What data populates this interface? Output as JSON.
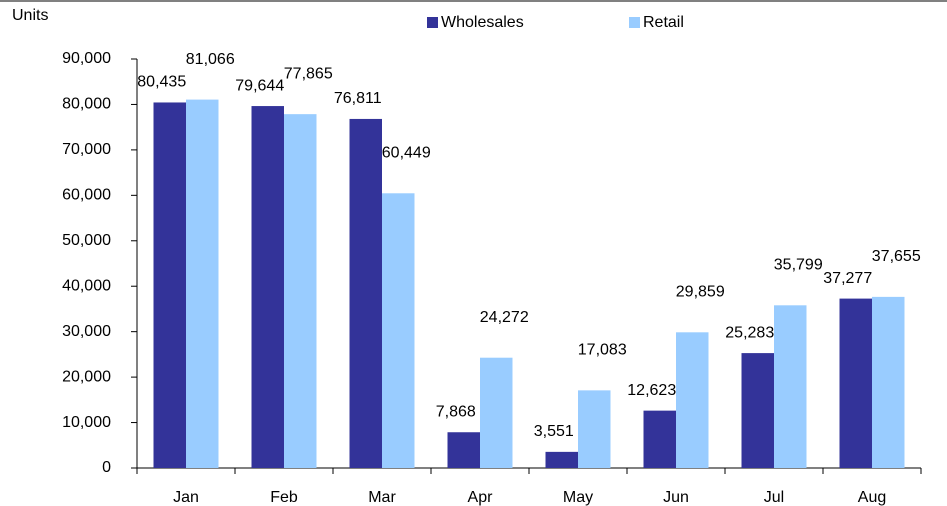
{
  "chart_data": {
    "type": "bar",
    "y_label": "Units",
    "categories": [
      "Jan",
      "Feb",
      "Mar",
      "Apr",
      "May",
      "Jun",
      "Jul",
      "Aug"
    ],
    "series": [
      {
        "name": "Wholesales",
        "color": "#333399",
        "values": [
          80435,
          79644,
          76811,
          7868,
          3551,
          12623,
          25283,
          37277
        ],
        "value_labels": [
          "80,435",
          "79,644",
          "76,811",
          "7,868",
          "3,551",
          "12,623",
          "25,283",
          "37,277"
        ]
      },
      {
        "name": "Retail",
        "color": "#99ccff",
        "values": [
          81066,
          77865,
          60449,
          24272,
          17083,
          29859,
          35799,
          37655
        ],
        "value_labels": [
          "81,066",
          "77,865",
          "60,449",
          "24,272",
          "17,083",
          "29,859",
          "35,799",
          "37,655"
        ]
      }
    ],
    "ylim": [
      0,
      90000
    ],
    "yticks": [
      0,
      {
        "value": 10000,
        "label": "10,000"
      },
      {
        "value": 20000,
        "label": "20,000"
      },
      {
        "value": 30000,
        "label": "30,000"
      },
      {
        "value": 40000,
        "label": "40,000"
      },
      {
        "value": 50000,
        "label": "50,000"
      },
      {
        "value": 60000,
        "label": "60,000"
      },
      {
        "value": 70000,
        "label": "70,000"
      },
      {
        "value": 80000,
        "label": "80,000"
      },
      {
        "value": 90000,
        "label": "90,000"
      }
    ],
    "legend": "top"
  }
}
